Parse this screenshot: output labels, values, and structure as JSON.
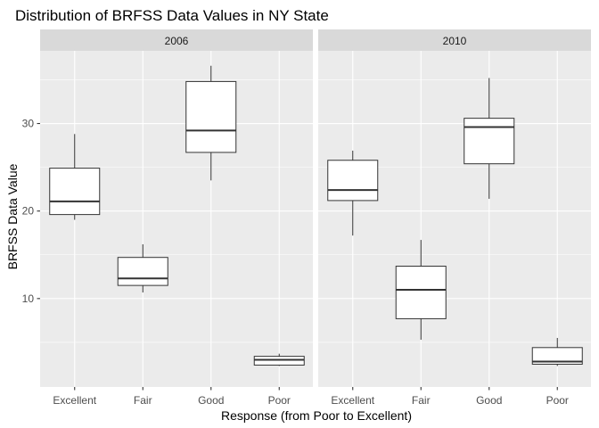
{
  "chart_data": {
    "type": "boxplot",
    "title": "Distribution of BRFSS Data Values in NY State",
    "xlabel": "Response (from Poor to Excellent)",
    "ylabel": "BRFSS Data Value",
    "categories": [
      "Excellent",
      "Fair",
      "Good",
      "Poor"
    ],
    "ylim": [
      0,
      38
    ],
    "yticks": [
      10,
      20,
      30
    ],
    "grid": true,
    "facets": [
      {
        "label": "2006",
        "boxes": [
          {
            "category": "Excellent",
            "min": 19.0,
            "q1": 19.6,
            "median": 21.1,
            "q3": 24.9,
            "max": 28.8
          },
          {
            "category": "Fair",
            "min": 10.7,
            "q1": 11.5,
            "median": 12.3,
            "q3": 14.7,
            "max": 16.2
          },
          {
            "category": "Good",
            "min": 23.5,
            "q1": 26.7,
            "median": 29.2,
            "q3": 34.8,
            "max": 36.6
          },
          {
            "category": "Poor",
            "min": 2.3,
            "q1": 2.4,
            "median": 3.0,
            "q3": 3.4,
            "max": 3.7
          }
        ]
      },
      {
        "label": "2010",
        "boxes": [
          {
            "category": "Excellent",
            "min": 17.2,
            "q1": 21.2,
            "median": 22.4,
            "q3": 25.8,
            "max": 26.9
          },
          {
            "category": "Fair",
            "min": 5.3,
            "q1": 7.7,
            "median": 11.0,
            "q3": 13.7,
            "max": 16.7
          },
          {
            "category": "Good",
            "min": 21.4,
            "q1": 25.4,
            "median": 29.6,
            "q3": 30.6,
            "max": 35.2
          },
          {
            "category": "Poor",
            "min": 2.3,
            "q1": 2.5,
            "median": 2.8,
            "q3": 4.4,
            "max": 5.5
          }
        ]
      }
    ]
  }
}
